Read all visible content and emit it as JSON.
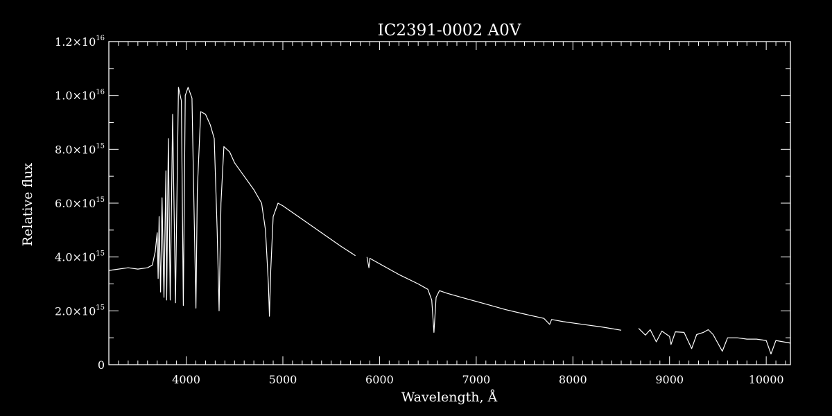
{
  "chart_data": {
    "type": "line",
    "title": "IC2391-0002  A0V",
    "xlabel": "Wavelength, Å",
    "ylabel": "Relative flux",
    "xlim": [
      3200,
      10250
    ],
    "ylim": [
      0,
      1.2e+16
    ],
    "x_ticks": [
      {
        "value": 4000,
        "label": "4000"
      },
      {
        "value": 5000,
        "label": "5000"
      },
      {
        "value": 6000,
        "label": "6000"
      },
      {
        "value": 7000,
        "label": "7000"
      },
      {
        "value": 8000,
        "label": "8000"
      },
      {
        "value": 9000,
        "label": "9000"
      },
      {
        "value": 10000,
        "label": "10000"
      }
    ],
    "y_ticks": [
      {
        "value": 0,
        "mantissa": "0",
        "exponent": ""
      },
      {
        "value": 2000000000000000.0,
        "mantissa": "2.0×10",
        "exponent": "15"
      },
      {
        "value": 4000000000000000.0,
        "mantissa": "4.0×10",
        "exponent": "15"
      },
      {
        "value": 6000000000000000.0,
        "mantissa": "6.0×10",
        "exponent": "15"
      },
      {
        "value": 8000000000000000.0,
        "mantissa": "8.0×10",
        "exponent": "15"
      },
      {
        "value": 1e+16,
        "mantissa": "1.0×10",
        "exponent": "16"
      },
      {
        "value": 1.2e+16,
        "mantissa": "1.2×10",
        "exponent": "16"
      }
    ],
    "grid": false,
    "line_color": "#ffffff",
    "background_color": "#000000",
    "series": [
      {
        "segments": [
          [
            [
              3200,
              3500000000000000.0
            ],
            [
              3300,
              3550000000000000.0
            ],
            [
              3400,
              3600000000000000.0
            ],
            [
              3500,
              3550000000000000.0
            ],
            [
              3600,
              3600000000000000.0
            ],
            [
              3650,
              3700000000000000.0
            ],
            [
              3680,
              4200000000000000.0
            ],
            [
              3700,
              4900000000000000.0
            ],
            [
              3710,
              3200000000000000.0
            ],
            [
              3720,
              5500000000000000.0
            ],
            [
              3735,
              2700000000000000.0
            ],
            [
              3750,
              6200000000000000.0
            ],
            [
              3770,
              2500000000000000.0
            ],
            [
              3790,
              7200000000000000.0
            ],
            [
              3798,
              2400000000000000.0
            ],
            [
              3815,
              8400000000000000.0
            ],
            [
              3835,
              2400000000000000.0
            ],
            [
              3860,
              9300000000000000.0
            ],
            [
              3889,
              2300000000000000.0
            ],
            [
              3920,
              1.03e+16
            ],
            [
              3950,
              9800000000000000.0
            ],
            [
              3970,
              2200000000000000.0
            ],
            [
              3990,
              1e+16
            ],
            [
              4020,
              1.03e+16
            ],
            [
              4060,
              9900000000000000.0
            ],
            [
              4080,
              6000000000000000.0
            ],
            [
              4101,
              2100000000000000.0
            ],
            [
              4115,
              6500000000000000.0
            ],
            [
              4150,
              9400000000000000.0
            ],
            [
              4200,
              9300000000000000.0
            ],
            [
              4250,
              8900000000000000.0
            ],
            [
              4290,
              8400000000000000.0
            ],
            [
              4320,
              5000000000000000.0
            ],
            [
              4340,
              2000000000000000.0
            ],
            [
              4360,
              6000000000000000.0
            ],
            [
              4390,
              8100000000000000.0
            ],
            [
              4450,
              7900000000000000.0
            ],
            [
              4500,
              7500000000000000.0
            ],
            [
              4600,
              7000000000000000.0
            ],
            [
              4700,
              6500000000000000.0
            ],
            [
              4780,
              6000000000000000.0
            ],
            [
              4820,
              5000000000000000.0
            ],
            [
              4850,
              3000000000000000.0
            ],
            [
              4861,
              1800000000000000.0
            ],
            [
              4875,
              3500000000000000.0
            ],
            [
              4900,
              5500000000000000.0
            ],
            [
              4950,
              6000000000000000.0
            ],
            [
              5000,
              5900000000000000.0
            ],
            [
              5200,
              5400000000000000.0
            ],
            [
              5400,
              4900000000000000.0
            ],
            [
              5600,
              4400000000000000.0
            ],
            [
              5750,
              4050000000000000.0
            ]
          ],
          [
            [
              5870,
              4000000000000000.0
            ],
            [
              5890,
              3600000000000000.0
            ],
            [
              5900,
              3950000000000000.0
            ],
            [
              6000,
              3750000000000000.0
            ],
            [
              6200,
              3350000000000000.0
            ],
            [
              6400,
              3000000000000000.0
            ],
            [
              6500,
              2800000000000000.0
            ],
            [
              6540,
              2400000000000000.0
            ],
            [
              6563,
              1200000000000000.0
            ],
            [
              6585,
              2500000000000000.0
            ],
            [
              6620,
              2750000000000000.0
            ],
            [
              6700,
              2650000000000000.0
            ],
            [
              6900,
              2450000000000000.0
            ],
            [
              7100,
              2250000000000000.0
            ],
            [
              7300,
              2050000000000000.0
            ],
            [
              7500,
              1880000000000000.0
            ],
            [
              7700,
              1720000000000000.0
            ],
            [
              7760,
              1500000000000000.0
            ],
            [
              7780,
              1680000000000000.0
            ],
            [
              7900,
              1600000000000000.0
            ],
            [
              8100,
              1500000000000000.0
            ],
            [
              8300,
              1400000000000000.0
            ],
            [
              8500,
              1280000000000000.0
            ]
          ],
          [
            [
              8680,
              1350000000000000.0
            ],
            [
              8750,
              1100000000000000.0
            ],
            [
              8800,
              1300000000000000.0
            ],
            [
              8863,
              850000000000000.0
            ],
            [
              8920,
              1250000000000000.0
            ],
            [
              9000,
              1050000000000000.0
            ],
            [
              9015,
              750000000000000.0
            ],
            [
              9060,
              1220000000000000.0
            ],
            [
              9150,
              1200000000000000.0
            ],
            [
              9229,
              600000000000000.0
            ],
            [
              9280,
              1120000000000000.0
            ],
            [
              9350,
              1200000000000000.0
            ],
            [
              9400,
              1300000000000000.0
            ],
            [
              9450,
              1120000000000000.0
            ],
            [
              9546,
              500000000000000.0
            ],
            [
              9600,
              1000000000000000.0
            ],
            [
              9700,
              1000000000000000.0
            ],
            [
              9800,
              950000000000000.0
            ],
            [
              9900,
              950000000000000.0
            ],
            [
              10000,
              900000000000000.0
            ],
            [
              10049,
              400000000000000.0
            ],
            [
              10100,
              900000000000000.0
            ],
            [
              10250,
              800000000000000.0
            ]
          ]
        ]
      }
    ]
  }
}
